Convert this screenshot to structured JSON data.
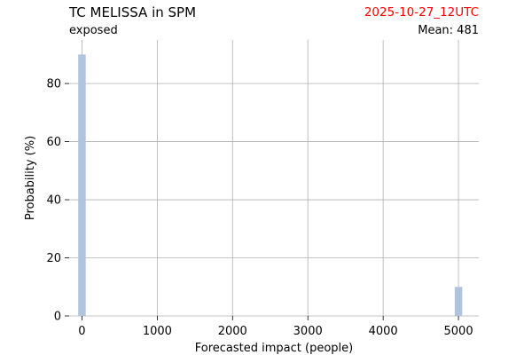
{
  "header": {
    "title": "TC MELISSA in SPM",
    "subtitle": "exposed",
    "date": "2025-10-27_12UTC",
    "mean": "Mean: 481"
  },
  "chart_data": {
    "type": "bar",
    "title": "TC MELISSA in SPM",
    "xlabel": "Forecasted impact (people)",
    "ylabel": "Probability (%)",
    "xlim": [
      -170,
      5270
    ],
    "ylim": [
      0,
      95
    ],
    "xticks": [
      0,
      1000,
      2000,
      3000,
      4000,
      5000
    ],
    "yticks": [
      0,
      20,
      40,
      60,
      80
    ],
    "grid": true,
    "bar_width": 100,
    "bars": [
      {
        "x": 0,
        "value": 90
      },
      {
        "x": 5000,
        "value": 10
      }
    ],
    "bar_color": "#b0c4de"
  }
}
